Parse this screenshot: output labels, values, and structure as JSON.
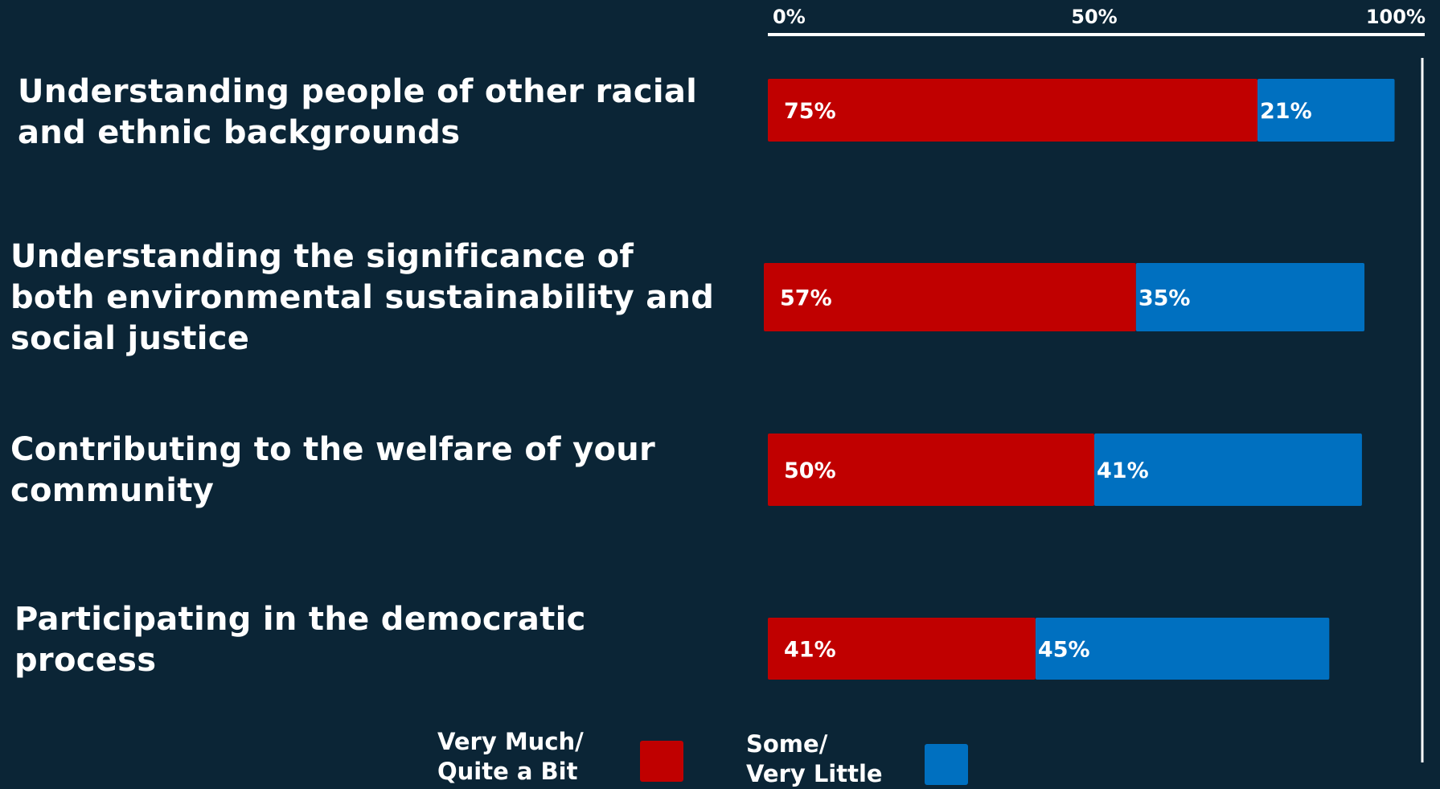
{
  "chart_data": {
    "type": "bar",
    "orientation": "horizontal",
    "stacked": true,
    "categories": [
      "Understanding people of other racial\nand ethnic backgrounds",
      "Understanding the significance of\nboth environmental sustainability and\nsocial justice",
      "Contributing to the welfare of your\ncommunity",
      "Participating in the democratic\nprocess"
    ],
    "series": [
      {
        "name": "Very Much/\nQuite a Bit",
        "color": "#c00000",
        "values": [
          75,
          57,
          50,
          41
        ],
        "labels": [
          "75%",
          "57%",
          "50%",
          "41%"
        ]
      },
      {
        "name": "Some/\nVery Little",
        "color": "#0070c0",
        "values": [
          21,
          35,
          41,
          45
        ],
        "labels": [
          "21%",
          "35%",
          "41%",
          "45%"
        ]
      }
    ],
    "xlim": [
      0,
      100
    ],
    "xticks": [
      0,
      50,
      100
    ],
    "xtick_labels": [
      "0%",
      "50%",
      "100%"
    ],
    "axis_position": "top",
    "grid": false,
    "legend": "bottom",
    "title": "",
    "xlabel": "",
    "ylabel": ""
  },
  "colors": {
    "background": "#0b2536",
    "text": "#ffffff",
    "axis": "#ffffff"
  }
}
